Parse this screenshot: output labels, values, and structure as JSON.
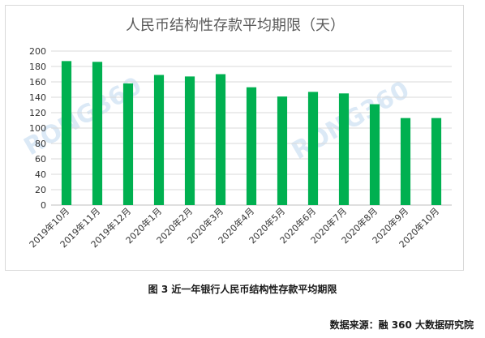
{
  "chart_data": {
    "type": "bar",
    "title": "人民币结构性存款平均期限（天）",
    "categories": [
      "2019年10月",
      "2019年11月",
      "2019年12月",
      "2020年1月",
      "2020年2月",
      "2020年3月",
      "2020年4月",
      "2020年5月",
      "2020年6月",
      "2020年7月",
      "2020年8月",
      "2020年9月",
      "2020年10月"
    ],
    "values": [
      187,
      186,
      158,
      169,
      167,
      170,
      153,
      141,
      147,
      145,
      131,
      113,
      113
    ],
    "ylim": [
      0,
      200
    ],
    "yticks": [
      0,
      20,
      40,
      60,
      80,
      100,
      120,
      140,
      160,
      180,
      200
    ],
    "grid": true,
    "bar_color": "#00b050",
    "watermark": "RONG360"
  },
  "caption": "图 3  近一年银行人民币结构性存款平均期限",
  "source": "数据来源：融 360 大数据研究院"
}
